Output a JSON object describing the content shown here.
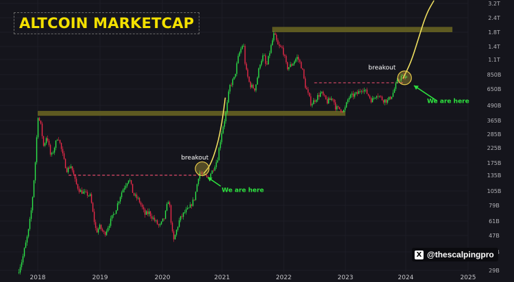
{
  "chart_data": {
    "type": "candlestick",
    "title": "ALTCOIN MARKETCAP",
    "y_scale": "log",
    "y_ticks": [
      "29B",
      "37B",
      "47B",
      "61B",
      "79B",
      "105B",
      "135B",
      "175B",
      "225B",
      "285B",
      "365B",
      "490B",
      "650B",
      "850B",
      "1.1T",
      "1.4T",
      "1.8T",
      "2.4T",
      "3.2T"
    ],
    "x_ticks": [
      "2018",
      "2019",
      "2020",
      "2021",
      "2022",
      "2023",
      "2024",
      "2025"
    ],
    "colors": {
      "up": "#2ee84a",
      "down": "#ef2a4a",
      "zone": "#6b6622",
      "projection": "#f0e060",
      "breakout_line": "#e04a6a"
    },
    "series": [
      {
        "values": [
          [
            "2017-09-10",
            28
          ],
          [
            "2017-10-10",
            34
          ],
          [
            "2017-11-10",
            48
          ],
          [
            "2017-12-01",
            75
          ],
          [
            "2017-12-20",
            150
          ],
          [
            "2018-01-08",
            400
          ],
          [
            "2018-01-25",
            330
          ],
          [
            "2018-02-10",
            230
          ],
          [
            "2018-03-01",
            280
          ],
          [
            "2018-03-25",
            190
          ],
          [
            "2018-04-20",
            240
          ],
          [
            "2018-05-05",
            280
          ],
          [
            "2018-06-01",
            200
          ],
          [
            "2018-06-25",
            150
          ],
          [
            "2018-07-20",
            165
          ],
          [
            "2018-08-15",
            120
          ],
          [
            "2018-09-10",
            105
          ],
          [
            "2018-10-10",
            100
          ],
          [
            "2018-11-10",
            95
          ],
          [
            "2018-11-25",
            70
          ],
          [
            "2018-12-15",
            50
          ],
          [
            "2019-01-05",
            55
          ],
          [
            "2019-02-01",
            48
          ],
          [
            "2019-03-01",
            58
          ],
          [
            "2019-04-10",
            75
          ],
          [
            "2019-05-15",
            105
          ],
          [
            "2019-06-25",
            130
          ],
          [
            "2019-07-20",
            98
          ],
          [
            "2019-08-20",
            88
          ],
          [
            "2019-09-25",
            68
          ],
          [
            "2019-10-20",
            70
          ],
          [
            "2019-11-20",
            62
          ],
          [
            "2019-12-20",
            55
          ],
          [
            "2020-01-20",
            65
          ],
          [
            "2020-02-14",
            90
          ],
          [
            "2020-03-13",
            42
          ],
          [
            "2020-04-20",
            62
          ],
          [
            "2020-05-20",
            70
          ],
          [
            "2020-06-20",
            75
          ],
          [
            "2020-07-20",
            90
          ],
          [
            "2020-08-20",
            145
          ],
          [
            "2020-09-10",
            135
          ],
          [
            "2020-10-10",
            128
          ],
          [
            "2020-11-10",
            150
          ],
          [
            "2020-12-10",
            190
          ],
          [
            "2021-01-05",
            300
          ],
          [
            "2021-01-25",
            390
          ],
          [
            "2021-02-20",
            680
          ],
          [
            "2021-03-20",
            800
          ],
          [
            "2021-04-15",
            1200
          ],
          [
            "2021-05-12",
            1500
          ],
          [
            "2021-05-25",
            950
          ],
          [
            "2021-06-20",
            700
          ],
          [
            "2021-07-20",
            650
          ],
          [
            "2021-08-20",
            1050
          ],
          [
            "2021-09-10",
            1200
          ],
          [
            "2021-09-25",
            950
          ],
          [
            "2021-10-20",
            1350
          ],
          [
            "2021-11-10",
            1750
          ],
          [
            "2021-12-05",
            1400
          ],
          [
            "2021-12-30",
            1350
          ],
          [
            "2022-01-25",
            950
          ],
          [
            "2022-02-20",
            1000
          ],
          [
            "2022-03-28",
            1150
          ],
          [
            "2022-04-25",
            950
          ],
          [
            "2022-05-12",
            700
          ],
          [
            "2022-06-18",
            500
          ],
          [
            "2022-07-20",
            560
          ],
          [
            "2022-08-15",
            610
          ],
          [
            "2022-09-20",
            520
          ],
          [
            "2022-10-25",
            560
          ],
          [
            "2022-11-09",
            470
          ],
          [
            "2022-12-30",
            440
          ],
          [
            "2023-01-25",
            560
          ],
          [
            "2023-02-20",
            580
          ],
          [
            "2023-03-20",
            600
          ],
          [
            "2023-04-18",
            660
          ],
          [
            "2023-05-20",
            600
          ],
          [
            "2023-06-15",
            530
          ],
          [
            "2023-07-15",
            600
          ],
          [
            "2023-08-20",
            540
          ],
          [
            "2023-09-20",
            530
          ],
          [
            "2023-10-20",
            600
          ],
          [
            "2023-11-15",
            740
          ],
          [
            "2023-12-10",
            820
          ],
          [
            "2024-01-05",
            800
          ]
        ]
      }
    ],
    "zones": [
      {
        "from": "2021-10-25",
        "to": "2024-10-01",
        "low": 1800,
        "high": 2000
      },
      {
        "from": "2018-01-01",
        "to": "2023-01-01",
        "low": 400,
        "high": 440
      }
    ],
    "breakout_levels": [
      {
        "from": "2018-07-01",
        "to": "2020-09-01",
        "value": 135
      },
      {
        "from": "2022-07-01",
        "to": "2023-12-15",
        "value": 730
      }
    ],
    "projection": {
      "color": "#f0e060",
      "paths": [
        [
          [
            "2020-09-10",
            140
          ],
          [
            "2020-10-20",
            165
          ],
          [
            "2020-12-01",
            230
          ],
          [
            "2021-01-01",
            350
          ],
          [
            "2021-01-20",
            560
          ]
        ],
        [
          [
            "2023-12-15",
            790
          ],
          [
            "2024-02-01",
            1050
          ],
          [
            "2024-03-15",
            1600
          ],
          [
            "2024-05-01",
            2600
          ],
          [
            "2024-06-15",
            3400
          ]
        ]
      ]
    },
    "annotations": [
      {
        "text": "breakout",
        "date": "2020-04-25",
        "value": 185,
        "color": "white",
        "group": "a"
      },
      {
        "text": "We are here",
        "date": "2020-12-30",
        "value": 103,
        "color": "green",
        "group": "a"
      },
      {
        "text": "breakout",
        "date": "2023-05-20",
        "value": 930,
        "color": "white",
        "group": "b"
      },
      {
        "text": "We are here",
        "date": "2024-05-05",
        "value": 510,
        "color": "green",
        "group": "b"
      }
    ],
    "circles": [
      {
        "date": "2020-09-01",
        "value": 155
      },
      {
        "date": "2023-12-25",
        "value": 800
      }
    ]
  },
  "watermark": {
    "icon": "x-logo-icon",
    "text": "@thescalpingpro"
  }
}
